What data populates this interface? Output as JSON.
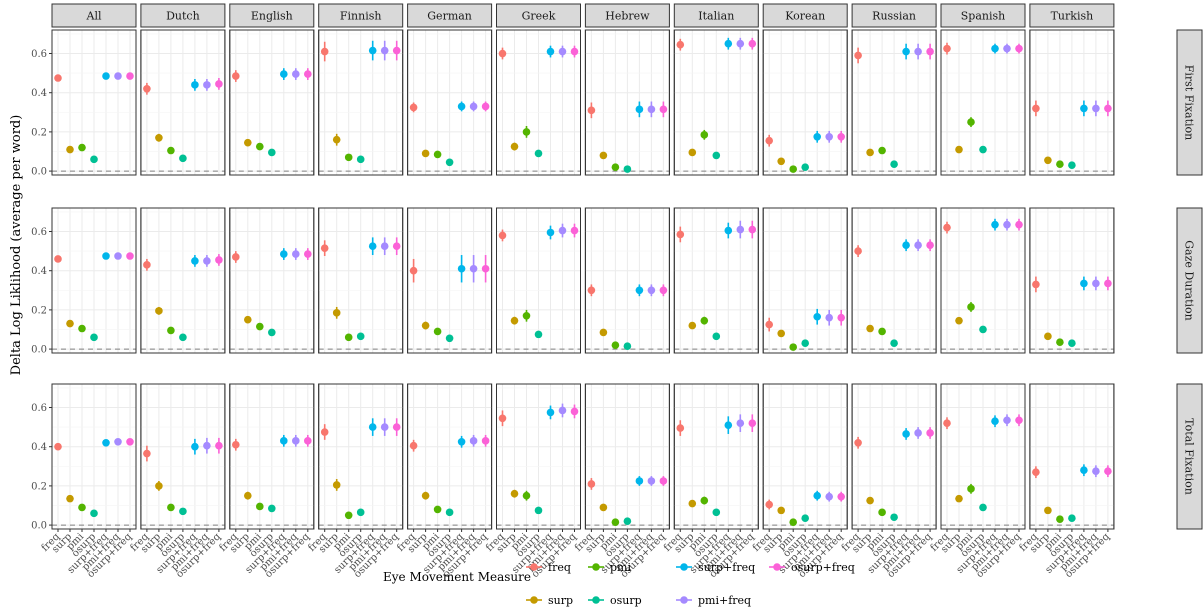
{
  "chart_data": {
    "type": "scatter",
    "subtype": "pointrange faceted grid",
    "ylabel": "Delta Log Liklihood (average  per word)",
    "ylim": [
      -0.02,
      0.72
    ],
    "yticks": [
      0.0,
      0.2,
      0.4,
      0.6
    ],
    "ytick_labels": [
      "0.0",
      "0.2",
      "0.4",
      "0.6"
    ],
    "reference_line_y": 0.0,
    "categories": [
      "freq",
      "surp",
      "pmi",
      "osurp",
      "surp+freq",
      "pmi+freq",
      "osurp+freq"
    ],
    "languages": [
      "All",
      "Dutch",
      "English",
      "Finnish",
      "German",
      "Greek",
      "Hebrew",
      "Italian",
      "Korean",
      "Russian",
      "Spanish",
      "Turkish"
    ],
    "measures": [
      "First Fixation",
      "Gaze Duration",
      "Total Fixation"
    ],
    "colors": {
      "freq": "#F8766D",
      "surp": "#C49A00",
      "pmi": "#53B400",
      "osurp": "#00C094",
      "surp+freq": "#00B6EB",
      "pmi+freq": "#A58AFF",
      "osurp+freq": "#FB61D7"
    },
    "legend": {
      "title": "Eye Movement Measure",
      "position": "bottom",
      "row1": [
        "freq",
        "pmi",
        "surp+freq",
        "osurp+freq"
      ],
      "row2": [
        "surp",
        "osurp",
        "pmi+freq"
      ]
    },
    "panels": {
      "First Fixation": {
        "All": {
          "values": [
            0.475,
            0.11,
            0.12,
            0.06,
            0.485,
            0.485,
            0.485
          ],
          "err": [
            0.015,
            0.01,
            0.01,
            0.008,
            0.012,
            0.012,
            0.012
          ]
        },
        "Dutch": {
          "values": [
            0.42,
            0.17,
            0.105,
            0.065,
            0.44,
            0.44,
            0.445
          ],
          "err": [
            0.03,
            0.02,
            0.015,
            0.012,
            0.03,
            0.03,
            0.03
          ]
        },
        "English": {
          "values": [
            0.485,
            0.145,
            0.125,
            0.095,
            0.495,
            0.495,
            0.495
          ],
          "err": [
            0.03,
            0.015,
            0.012,
            0.01,
            0.03,
            0.03,
            0.03
          ]
        },
        "Finnish": {
          "values": [
            0.61,
            0.16,
            0.07,
            0.06,
            0.615,
            0.615,
            0.615
          ],
          "err": [
            0.05,
            0.03,
            0.015,
            0.012,
            0.05,
            0.05,
            0.05
          ]
        },
        "German": {
          "values": [
            0.325,
            0.09,
            0.085,
            0.045,
            0.33,
            0.33,
            0.33
          ],
          "err": [
            0.025,
            0.012,
            0.012,
            0.01,
            0.025,
            0.025,
            0.025
          ]
        },
        "Greek": {
          "values": [
            0.6,
            0.125,
            0.2,
            0.09,
            0.61,
            0.61,
            0.61
          ],
          "err": [
            0.03,
            0.02,
            0.03,
            0.012,
            0.03,
            0.03,
            0.03
          ]
        },
        "Hebrew": {
          "values": [
            0.31,
            0.08,
            0.02,
            0.01,
            0.315,
            0.315,
            0.315
          ],
          "err": [
            0.04,
            0.012,
            0.01,
            0.008,
            0.04,
            0.04,
            0.04
          ]
        },
        "Italian": {
          "values": [
            0.645,
            0.095,
            0.185,
            0.08,
            0.65,
            0.65,
            0.65
          ],
          "err": [
            0.03,
            0.012,
            0.025,
            0.012,
            0.03,
            0.03,
            0.03
          ]
        },
        "Korean": {
          "values": [
            0.155,
            0.05,
            0.01,
            0.02,
            0.175,
            0.175,
            0.175
          ],
          "err": [
            0.03,
            0.012,
            0.008,
            0.01,
            0.03,
            0.03,
            0.03
          ]
        },
        "Russian": {
          "values": [
            0.59,
            0.095,
            0.105,
            0.035,
            0.61,
            0.61,
            0.61
          ],
          "err": [
            0.04,
            0.012,
            0.015,
            0.01,
            0.04,
            0.04,
            0.04
          ]
        },
        "Spanish": {
          "values": [
            0.625,
            0.11,
            0.25,
            0.11,
            0.625,
            0.625,
            0.625
          ],
          "err": [
            0.03,
            0.012,
            0.025,
            0.012,
            0.025,
            0.025,
            0.025
          ]
        },
        "Turkish": {
          "values": [
            0.32,
            0.055,
            0.035,
            0.03,
            0.32,
            0.32,
            0.32
          ],
          "err": [
            0.04,
            0.01,
            0.01,
            0.008,
            0.04,
            0.04,
            0.04
          ]
        }
      },
      "Gaze Duration": {
        "All": {
          "values": [
            0.46,
            0.13,
            0.105,
            0.06,
            0.475,
            0.475,
            0.475
          ],
          "err": [
            0.015,
            0.01,
            0.01,
            0.008,
            0.012,
            0.012,
            0.012
          ]
        },
        "Dutch": {
          "values": [
            0.43,
            0.195,
            0.095,
            0.06,
            0.45,
            0.45,
            0.455
          ],
          "err": [
            0.03,
            0.02,
            0.015,
            0.012,
            0.03,
            0.03,
            0.03
          ]
        },
        "English": {
          "values": [
            0.47,
            0.15,
            0.115,
            0.085,
            0.485,
            0.485,
            0.485
          ],
          "err": [
            0.03,
            0.015,
            0.012,
            0.01,
            0.03,
            0.03,
            0.03
          ]
        },
        "Finnish": {
          "values": [
            0.515,
            0.185,
            0.06,
            0.065,
            0.525,
            0.525,
            0.525
          ],
          "err": [
            0.04,
            0.03,
            0.012,
            0.012,
            0.045,
            0.045,
            0.045
          ]
        },
        "German": {
          "values": [
            0.4,
            0.12,
            0.09,
            0.055,
            0.41,
            0.41,
            0.41
          ],
          "err": [
            0.06,
            0.02,
            0.015,
            0.012,
            0.07,
            0.07,
            0.07
          ]
        },
        "Greek": {
          "values": [
            0.58,
            0.145,
            0.17,
            0.075,
            0.595,
            0.605,
            0.605
          ],
          "err": [
            0.03,
            0.02,
            0.03,
            0.012,
            0.035,
            0.035,
            0.035
          ]
        },
        "Hebrew": {
          "values": [
            0.3,
            0.085,
            0.02,
            0.015,
            0.3,
            0.3,
            0.3
          ],
          "err": [
            0.03,
            0.012,
            0.01,
            0.008,
            0.03,
            0.03,
            0.03
          ]
        },
        "Italian": {
          "values": [
            0.585,
            0.12,
            0.145,
            0.065,
            0.605,
            0.61,
            0.61
          ],
          "err": [
            0.04,
            0.012,
            0.02,
            0.01,
            0.04,
            0.045,
            0.045
          ]
        },
        "Korean": {
          "values": [
            0.125,
            0.08,
            0.01,
            0.03,
            0.165,
            0.16,
            0.16
          ],
          "err": [
            0.035,
            0.015,
            0.008,
            0.01,
            0.04,
            0.04,
            0.04
          ]
        },
        "Russian": {
          "values": [
            0.5,
            0.105,
            0.09,
            0.03,
            0.53,
            0.53,
            0.53
          ],
          "err": [
            0.03,
            0.012,
            0.015,
            0.01,
            0.03,
            0.03,
            0.03
          ]
        },
        "Spanish": {
          "values": [
            0.62,
            0.145,
            0.215,
            0.1,
            0.635,
            0.635,
            0.635
          ],
          "err": [
            0.03,
            0.015,
            0.025,
            0.012,
            0.03,
            0.03,
            0.03
          ]
        },
        "Turkish": {
          "values": [
            0.33,
            0.065,
            0.035,
            0.03,
            0.335,
            0.335,
            0.335
          ],
          "err": [
            0.04,
            0.012,
            0.01,
            0.008,
            0.035,
            0.035,
            0.035
          ]
        }
      },
      "Total Fixation": {
        "All": {
          "values": [
            0.4,
            0.135,
            0.09,
            0.06,
            0.42,
            0.425,
            0.425
          ],
          "err": [
            0.015,
            0.01,
            0.01,
            0.008,
            0.012,
            0.012,
            0.012
          ]
        },
        "Dutch": {
          "values": [
            0.365,
            0.2,
            0.09,
            0.07,
            0.4,
            0.405,
            0.405
          ],
          "err": [
            0.04,
            0.025,
            0.015,
            0.012,
            0.04,
            0.04,
            0.04
          ]
        },
        "English": {
          "values": [
            0.41,
            0.15,
            0.095,
            0.085,
            0.43,
            0.43,
            0.43
          ],
          "err": [
            0.03,
            0.02,
            0.012,
            0.01,
            0.03,
            0.03,
            0.03
          ]
        },
        "Finnish": {
          "values": [
            0.475,
            0.205,
            0.05,
            0.065,
            0.5,
            0.5,
            0.5
          ],
          "err": [
            0.04,
            0.03,
            0.012,
            0.012,
            0.045,
            0.045,
            0.045
          ]
        },
        "German": {
          "values": [
            0.405,
            0.15,
            0.08,
            0.065,
            0.425,
            0.43,
            0.43
          ],
          "err": [
            0.03,
            0.02,
            0.012,
            0.01,
            0.03,
            0.03,
            0.03
          ]
        },
        "Greek": {
          "values": [
            0.545,
            0.16,
            0.15,
            0.075,
            0.575,
            0.585,
            0.58
          ],
          "err": [
            0.04,
            0.02,
            0.025,
            0.012,
            0.035,
            0.035,
            0.035
          ]
        },
        "Hebrew": {
          "values": [
            0.21,
            0.09,
            0.015,
            0.02,
            0.225,
            0.225,
            0.225
          ],
          "err": [
            0.03,
            0.012,
            0.01,
            0.008,
            0.025,
            0.025,
            0.025
          ]
        },
        "Italian": {
          "values": [
            0.495,
            0.11,
            0.125,
            0.065,
            0.51,
            0.52,
            0.52
          ],
          "err": [
            0.04,
            0.012,
            0.02,
            0.01,
            0.045,
            0.045,
            0.045
          ]
        },
        "Korean": {
          "values": [
            0.105,
            0.075,
            0.015,
            0.035,
            0.15,
            0.145,
            0.145
          ],
          "err": [
            0.025,
            0.015,
            0.008,
            0.01,
            0.025,
            0.025,
            0.025
          ]
        },
        "Russian": {
          "values": [
            0.42,
            0.125,
            0.065,
            0.04,
            0.465,
            0.47,
            0.47
          ],
          "err": [
            0.03,
            0.015,
            0.012,
            0.01,
            0.03,
            0.03,
            0.03
          ]
        },
        "Spanish": {
          "values": [
            0.52,
            0.135,
            0.185,
            0.09,
            0.53,
            0.535,
            0.535
          ],
          "err": [
            0.03,
            0.015,
            0.025,
            0.012,
            0.03,
            0.03,
            0.03
          ]
        },
        "Turkish": {
          "values": [
            0.27,
            0.075,
            0.03,
            0.035,
            0.28,
            0.275,
            0.275
          ],
          "err": [
            0.03,
            0.012,
            0.01,
            0.008,
            0.03,
            0.03,
            0.03
          ]
        }
      }
    }
  }
}
